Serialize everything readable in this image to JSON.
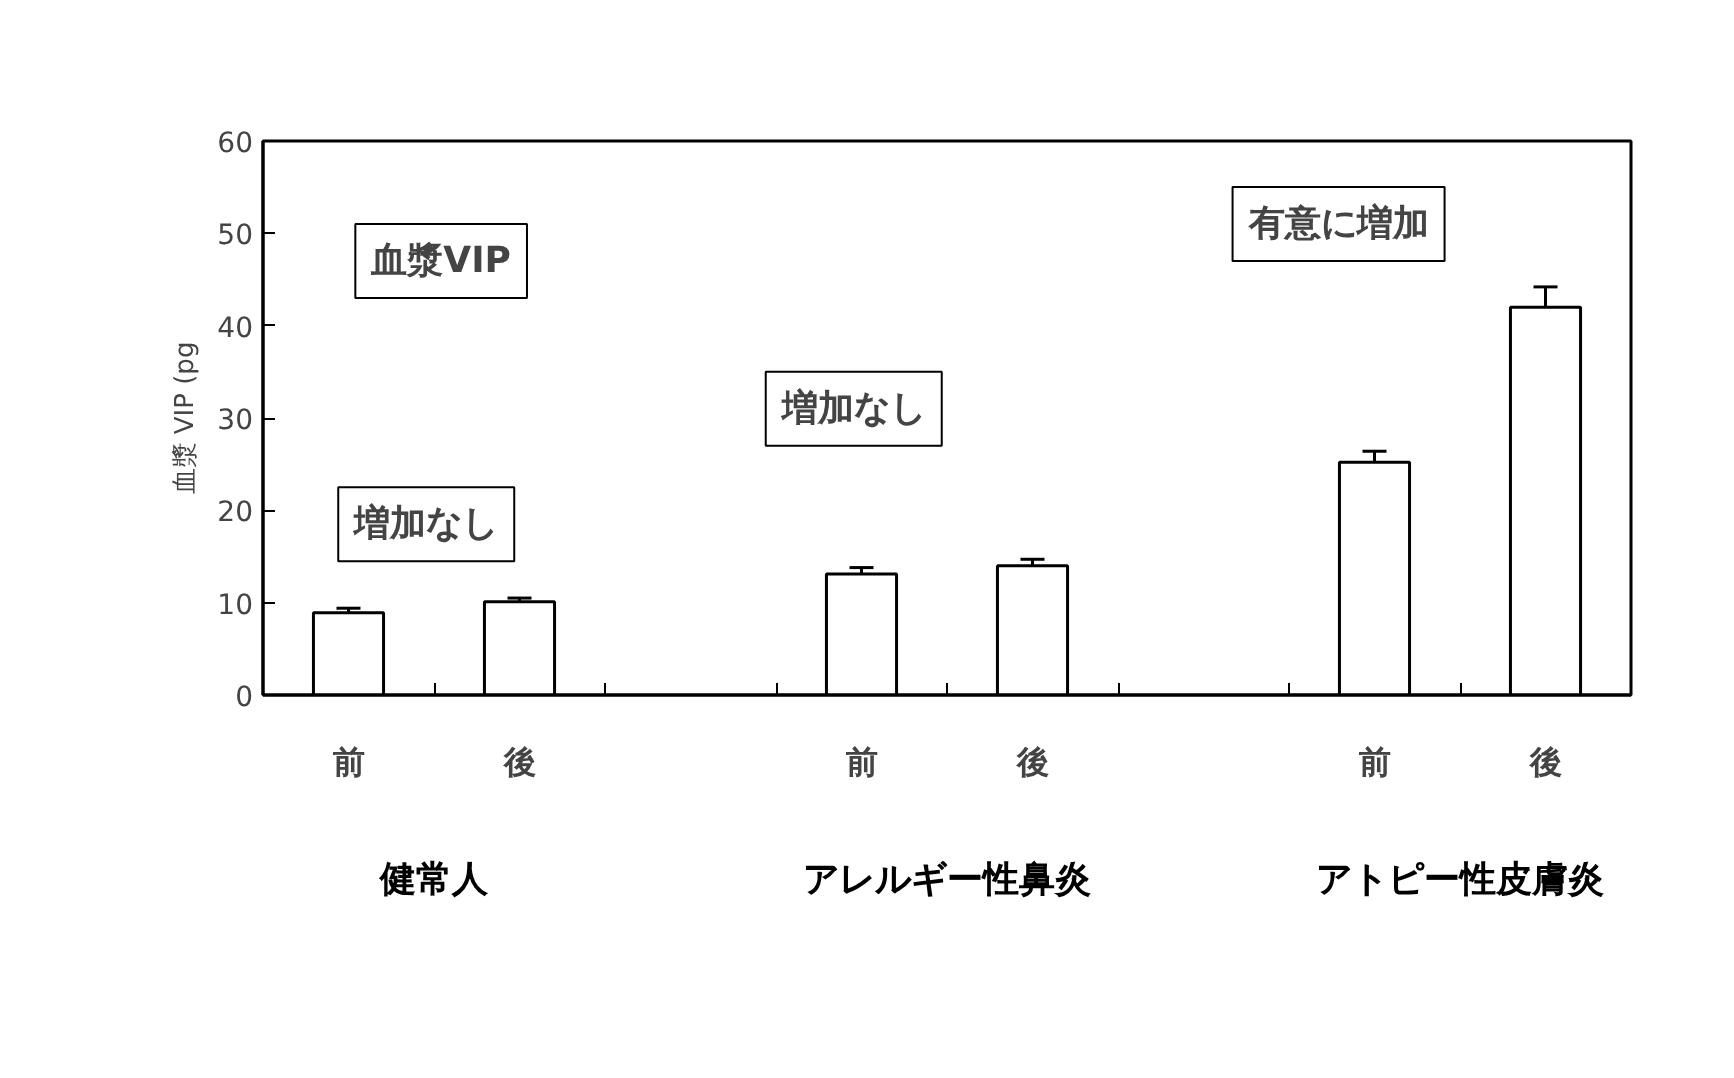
{
  "chart_data": {
    "type": "bar",
    "ylabel": "血漿 VIP (pg",
    "categories": [
      "前",
      "後",
      null,
      "前",
      "後",
      null,
      "前",
      "後"
    ],
    "series": [
      {
        "color": "#ffffff",
        "values": [
          8.9,
          10.1,
          null,
          13.1,
          14.0,
          null,
          25.2,
          42
        ],
        "errors": [
          [
            8.9,
            9.4
          ],
          [
            10.1,
            10.5
          ],
          null,
          [
            13.1,
            13.8
          ],
          [
            14.0,
            14.7
          ],
          null,
          [
            25.2,
            26.4
          ],
          [
            42,
            44.2
          ]
        ]
      }
    ],
    "ylim": [
      0,
      60
    ],
    "yticks": [
      0,
      10,
      20,
      30,
      40,
      50,
      60
    ],
    "annotations": [
      "血漿VIP",
      "増加なし",
      "増加なし",
      "有意に増加",
      "健常人",
      "アレルギー性鼻炎",
      "アトピー性皮膚炎"
    ]
  }
}
